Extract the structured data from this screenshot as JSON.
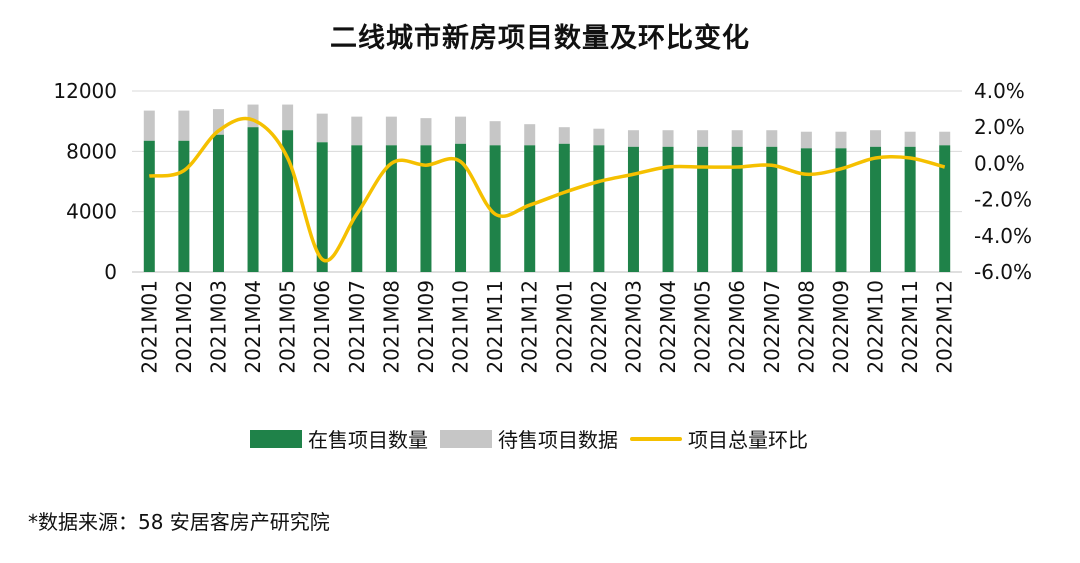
{
  "colors": {
    "on_sale": "#1f8249",
    "pending": "#c6c6c6",
    "line": "#f5c000",
    "grid": "#d9d9d9"
  },
  "chart_data": {
    "type": "bar",
    "title": "二线城市新房项目数量及环比变化",
    "categories": [
      "2021M01",
      "2021M02",
      "2021M03",
      "2021M04",
      "2021M05",
      "2021M06",
      "2021M07",
      "2021M08",
      "2021M09",
      "2021M10",
      "2021M11",
      "2021M12",
      "2022M01",
      "2022M02",
      "2022M03",
      "2022M04",
      "2022M05",
      "2022M06",
      "2022M07",
      "2022M08",
      "2022M09",
      "2022M10",
      "2022M11",
      "2022M12"
    ],
    "series": [
      {
        "name": "在售项目数量",
        "kind": "bar",
        "values": [
          8700,
          8700,
          9100,
          9600,
          9400,
          8600,
          8400,
          8400,
          8400,
          8500,
          8400,
          8400,
          8500,
          8400,
          8300,
          8300,
          8300,
          8300,
          8300,
          8200,
          8200,
          8300,
          8300,
          8400
        ]
      },
      {
        "name": "待售项目数据",
        "kind": "bar",
        "values": [
          2000,
          2000,
          1700,
          1500,
          1700,
          1900,
          1900,
          1900,
          1800,
          1800,
          1600,
          1400,
          1100,
          1100,
          1100,
          1100,
          1100,
          1100,
          1100,
          1100,
          1100,
          1100,
          1000,
          900
        ]
      },
      {
        "name": "项目总量环比",
        "kind": "line",
        "axis": "right",
        "unit": "%",
        "values": [
          -0.7,
          -0.4,
          1.8,
          2.4,
          0.3,
          -5.3,
          -2.8,
          0.0,
          -0.1,
          0.1,
          -2.8,
          -2.3,
          -1.6,
          -1.0,
          -0.6,
          -0.2,
          -0.2,
          -0.2,
          -0.1,
          -0.6,
          -0.3,
          0.3,
          0.3,
          -0.2
        ]
      }
    ],
    "left_axis": {
      "ticks": [
        "12000",
        "8000",
        "4000",
        "0"
      ],
      "tick_values": [
        12000,
        8000,
        4000,
        0
      ],
      "ylim": [
        0,
        12000
      ]
    },
    "right_axis": {
      "ticks": [
        "4.0%",
        "2.0%",
        "0.0%",
        "-2.0%",
        "-4.0%",
        "-6.0%"
      ],
      "tick_values": [
        4,
        2,
        0,
        -2,
        -4,
        -6
      ],
      "ylim": [
        -6,
        4
      ]
    },
    "legend_position": "bottom"
  },
  "legend": [
    {
      "label": "在售项目数量"
    },
    {
      "label": "待售项目数据"
    },
    {
      "label": "项目总量环比"
    }
  ],
  "source_note": "*数据来源：58 安居客房产研究院"
}
